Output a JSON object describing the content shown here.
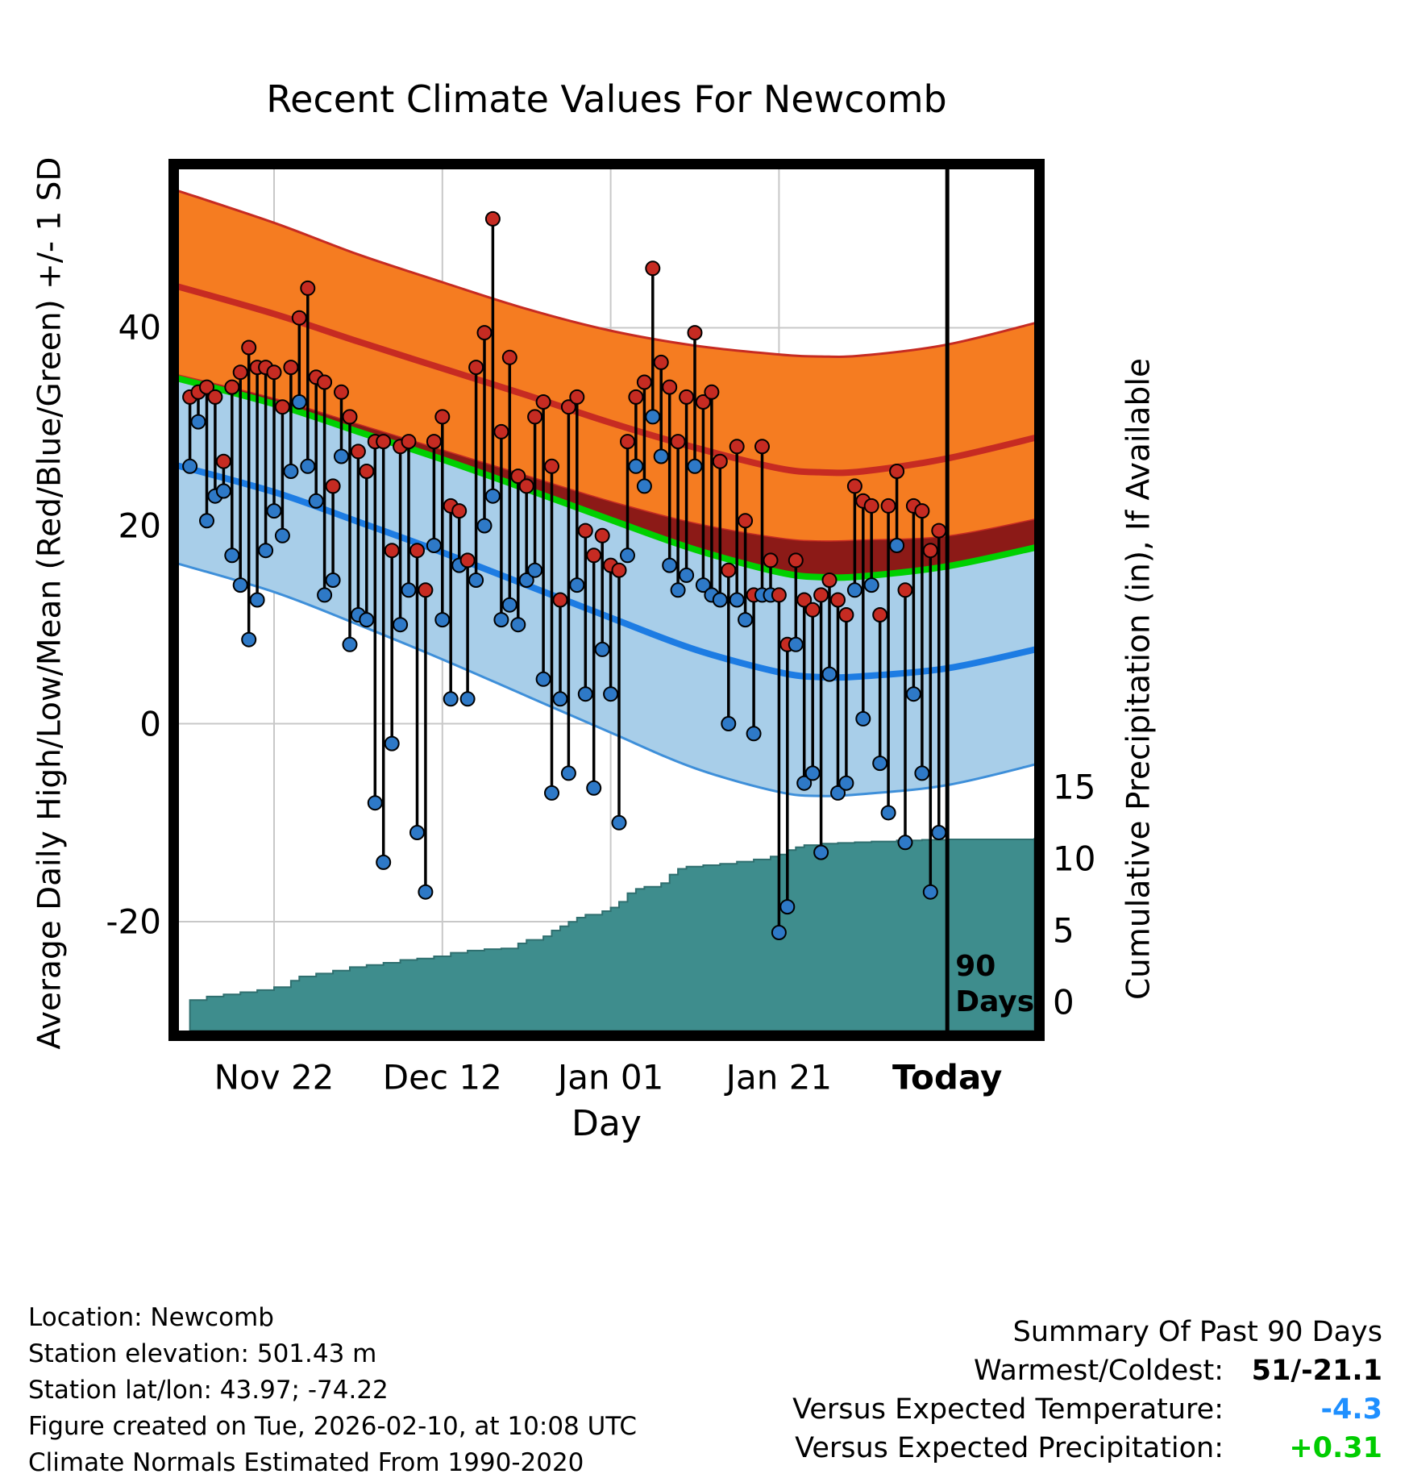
{
  "chart_data": {
    "type": "line",
    "title": "Recent Climate Values For Newcomb",
    "xlabel": "Day",
    "ylabel_left": "Average Daily High/Low/Mean (Red/Blue/Green) +/- 1 SD",
    "ylabel_right": "Cumulative Precipitation (in), If Available",
    "x_ticks": [
      {
        "day": 10,
        "label": "Nov 22",
        "bold": false
      },
      {
        "day": 30,
        "label": "Dec 12",
        "bold": false
      },
      {
        "day": 50,
        "label": "Jan 01",
        "bold": false
      },
      {
        "day": 70,
        "label": "Jan 21",
        "bold": false
      },
      {
        "day": 90,
        "label": "Today",
        "bold": true
      }
    ],
    "left_ticks": [
      40,
      20,
      0,
      -20
    ],
    "right_ticks": [
      15,
      10,
      5,
      0
    ],
    "temp_axis_range": [
      -31,
      56
    ],
    "precip_axis_range": [
      0,
      18
    ],
    "annotation": [
      "90",
      "Days"
    ],
    "climatology": {
      "days": [
        -2,
        10,
        20,
        30,
        40,
        50,
        60,
        70,
        75,
        80,
        90,
        101
      ],
      "high_upper": [
        54.0,
        50.6,
        47.4,
        44.6,
        41.9,
        39.7,
        38.2,
        37.3,
        37.1,
        37.2,
        38.3,
        40.6
      ],
      "high_mean": [
        44.3,
        41.4,
        38.6,
        35.9,
        33.2,
        30.4,
        27.9,
        25.8,
        25.4,
        25.5,
        26.8,
        29.0
      ],
      "high_lower": [
        35.3,
        32.8,
        30.2,
        27.6,
        25.0,
        22.4,
        20.2,
        18.7,
        18.4,
        18.5,
        18.9,
        20.7
      ],
      "mean": [
        35.0,
        32.3,
        29.5,
        26.7,
        23.7,
        20.6,
        17.6,
        15.3,
        14.8,
        14.9,
        15.9,
        17.9
      ],
      "low_mean": [
        26.2,
        23.4,
        20.4,
        17.3,
        14.0,
        10.7,
        7.5,
        5.2,
        4.7,
        4.8,
        5.6,
        7.6
      ],
      "low_lower": [
        16.3,
        13.3,
        10.0,
        6.5,
        2.8,
        -0.9,
        -4.5,
        -6.9,
        -7.3,
        -7.1,
        -6.2,
        -4.0
      ]
    },
    "observations": [
      [
        0,
        33,
        26
      ],
      [
        1,
        33.5,
        30.5
      ],
      [
        2,
        34,
        20.5
      ],
      [
        3,
        33,
        23
      ],
      [
        4,
        26.5,
        23.5
      ],
      [
        5,
        34,
        17
      ],
      [
        6,
        35.5,
        14
      ],
      [
        7,
        38,
        8.5
      ],
      [
        8,
        36,
        12.5
      ],
      [
        9,
        36,
        17.5
      ],
      [
        10,
        35.5,
        21.5
      ],
      [
        11,
        32,
        19
      ],
      [
        12,
        36,
        25.5
      ],
      [
        13,
        41,
        32.5
      ],
      [
        14,
        44,
        26
      ],
      [
        15,
        35,
        22.5
      ],
      [
        16,
        34.5,
        13
      ],
      [
        17,
        24,
        14.5
      ],
      [
        18,
        33.5,
        27
      ],
      [
        19,
        31,
        8
      ],
      [
        20,
        27.5,
        11
      ],
      [
        21,
        25.5,
        10.5
      ],
      [
        22,
        28.5,
        -8
      ],
      [
        23,
        28.5,
        -14
      ],
      [
        24,
        17.5,
        -2
      ],
      [
        25,
        28,
        10
      ],
      [
        26,
        28.5,
        13.5
      ],
      [
        27,
        17.5,
        -11
      ],
      [
        28,
        13.5,
        -17
      ],
      [
        29,
        28.5,
        18
      ],
      [
        30,
        31,
        10.5
      ],
      [
        31,
        22,
        2.5
      ],
      [
        32,
        21.5,
        16
      ],
      [
        33,
        16.5,
        2.5
      ],
      [
        34,
        36,
        14.5
      ],
      [
        35,
        39.5,
        20
      ],
      [
        36,
        51,
        23
      ],
      [
        37,
        29.5,
        10.5
      ],
      [
        38,
        37,
        12
      ],
      [
        39,
        25,
        10
      ],
      [
        40,
        24,
        14.5
      ],
      [
        41,
        31,
        15.5
      ],
      [
        42,
        32.5,
        4.5
      ],
      [
        43,
        26,
        -7
      ],
      [
        44,
        12.5,
        2.5
      ],
      [
        45,
        32,
        -5
      ],
      [
        46,
        33,
        14
      ],
      [
        47,
        19.5,
        3
      ],
      [
        48,
        17,
        -6.5
      ],
      [
        49,
        19,
        7.5
      ],
      [
        50,
        16,
        3
      ],
      [
        51,
        15.5,
        -10
      ],
      [
        52,
        28.5,
        17
      ],
      [
        53,
        33,
        26
      ],
      [
        54,
        34.5,
        24
      ],
      [
        55,
        46,
        31
      ],
      [
        56,
        36.5,
        27
      ],
      [
        57,
        34,
        16
      ],
      [
        58,
        28.5,
        13.5
      ],
      [
        59,
        33,
        15
      ],
      [
        60,
        39.5,
        26
      ],
      [
        61,
        32.5,
        14
      ],
      [
        62,
        33.5,
        13
      ],
      [
        63,
        26.5,
        12.5
      ],
      [
        64,
        15.5,
        0
      ],
      [
        65,
        28,
        12.5
      ],
      [
        66,
        20.5,
        10.5
      ],
      [
        67,
        13,
        -1
      ],
      [
        68,
        28,
        13
      ],
      [
        69,
        16.5,
        13
      ],
      [
        70,
        13,
        -21.1
      ],
      [
        71,
        8,
        -18.5
      ],
      [
        72,
        16.5,
        8
      ],
      [
        73,
        12.5,
        -6
      ],
      [
        74,
        11.5,
        -5
      ],
      [
        75,
        13,
        -13
      ],
      [
        76,
        14.5,
        5
      ],
      [
        77,
        12.5,
        -7
      ],
      [
        78,
        11,
        -6
      ],
      [
        79,
        24,
        13.5
      ],
      [
        80,
        22.5,
        0.5
      ],
      [
        81,
        22,
        14
      ],
      [
        82,
        11,
        -4
      ],
      [
        83,
        22,
        -9
      ],
      [
        84,
        25.5,
        18
      ],
      [
        85,
        13.5,
        -12
      ],
      [
        86,
        22,
        3
      ],
      [
        87,
        21.5,
        -5
      ],
      [
        88,
        17.5,
        -17
      ],
      [
        89,
        19.5,
        -11
      ]
    ],
    "cumulative_precip": [
      [
        0,
        0.15
      ],
      [
        2,
        0.4
      ],
      [
        4,
        0.55
      ],
      [
        6,
        0.7
      ],
      [
        8,
        0.85
      ],
      [
        10,
        1.05
      ],
      [
        12,
        1.5
      ],
      [
        13,
        1.8
      ],
      [
        15,
        2.0
      ],
      [
        17,
        2.2
      ],
      [
        19,
        2.45
      ],
      [
        21,
        2.6
      ],
      [
        23,
        2.75
      ],
      [
        25,
        2.95
      ],
      [
        27,
        3.05
      ],
      [
        29,
        3.2
      ],
      [
        31,
        3.45
      ],
      [
        33,
        3.6
      ],
      [
        35,
        3.7
      ],
      [
        37,
        3.75
      ],
      [
        39,
        4.1
      ],
      [
        40,
        4.35
      ],
      [
        42,
        4.6
      ],
      [
        43,
        5.0
      ],
      [
        44,
        5.3
      ],
      [
        45,
        5.6
      ],
      [
        46,
        5.9
      ],
      [
        47,
        6.1
      ],
      [
        49,
        6.35
      ],
      [
        50,
        6.6
      ],
      [
        51,
        7.0
      ],
      [
        52,
        7.6
      ],
      [
        53,
        7.9
      ],
      [
        54,
        8.05
      ],
      [
        56,
        8.3
      ],
      [
        57,
        8.9
      ],
      [
        58,
        9.3
      ],
      [
        59,
        9.45
      ],
      [
        61,
        9.55
      ],
      [
        63,
        9.65
      ],
      [
        65,
        9.8
      ],
      [
        67,
        9.95
      ],
      [
        69,
        10.15
      ],
      [
        70,
        10.3
      ],
      [
        71,
        10.6
      ],
      [
        72,
        10.8
      ],
      [
        73,
        10.95
      ],
      [
        75,
        11.05
      ],
      [
        77,
        11.1
      ],
      [
        79,
        11.15
      ],
      [
        81,
        11.2
      ],
      [
        84,
        11.28
      ],
      [
        87,
        11.32
      ],
      [
        90,
        11.35
      ],
      [
        101,
        11.38
      ]
    ],
    "colors": {
      "orange_band": "#F57C21",
      "red_line": "#C62B22",
      "dark_red_band": "#8C1A17",
      "green_line": "#00D000",
      "blue_band": "#A8CEE9",
      "blue_band_edge": "#3E8FD9",
      "blue_line": "#1D7CE3",
      "teal_precip": "#3E8D8D",
      "teal_edge": "#2F6F6F",
      "obs_high_dot": "#C62B22",
      "obs_low_dot": "#2E79C7",
      "grid": "#C8C8C8"
    }
  },
  "footer": {
    "left_lines": [
      "Location: Newcomb",
      "Station elevation: 501.43 m",
      "Station lat/lon: 43.97; -74.22",
      "Figure created on Tue, 2026-02-10, at 10:08 UTC",
      "Climate Normals Estimated From 1990-2020"
    ],
    "summary": {
      "title": "Summary Of Past 90 Days",
      "rows": [
        {
          "label": "Warmest/Coldest:",
          "value": "51/-21.1",
          "color": "#000000"
        },
        {
          "label": "Versus Expected Temperature:",
          "value": "-4.3",
          "color": "#1E8FFF"
        },
        {
          "label": "Versus Expected Precipitation:",
          "value": "+0.31",
          "color": "#00CC00"
        }
      ]
    }
  }
}
